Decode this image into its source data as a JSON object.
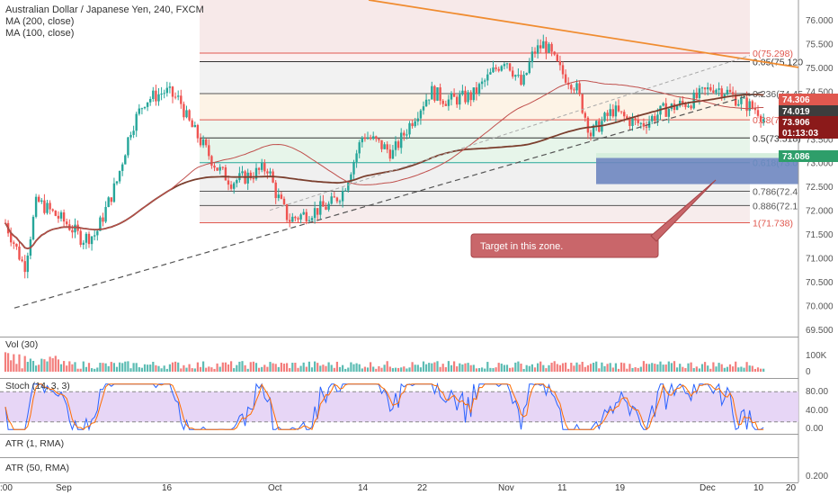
{
  "header": {
    "title": "Australian Dollar / Japanese Yen, 240, FXCM",
    "ma200": "MA (200, close)",
    "ma100": "MA (100, close)"
  },
  "price_axis": {
    "ticks": [
      "76.000",
      "75.500",
      "75.000",
      "74.500",
      "74.000",
      "73.500",
      "73.000",
      "72.500",
      "72.000",
      "71.500",
      "71.000",
      "70.500",
      "70.000",
      "69.500"
    ]
  },
  "badges": [
    {
      "text": "74.306",
      "color": "#e0584f"
    },
    {
      "text": "74.019",
      "color": "#3d3d3d"
    },
    {
      "text": "73.906",
      "color": "#8b1a1a"
    },
    {
      "text": "01:13:03",
      "color": "#8b1a1a"
    },
    {
      "text": "73.086",
      "color": "#2e9e6a"
    }
  ],
  "fib_labels": [
    {
      "text": "0(75.298)",
      "color": "#e0584f"
    },
    {
      "text": "0.05(75.120",
      "color": "#333333"
    },
    {
      "text": "0.236(74.45",
      "color": "#555555"
    },
    {
      "text": "0.38(73.9",
      "color": "#e0584f"
    },
    {
      "text": "0.5(73.518)",
      "color": "#333333"
    },
    {
      "text": "0.618(73.0",
      "color": "#26a69a"
    },
    {
      "text": "0.786(72.4",
      "color": "#555555"
    },
    {
      "text": "0.886(72.1",
      "color": "#555555"
    },
    {
      "text": "1(71.738)",
      "color": "#e0584f"
    }
  ],
  "annotation": {
    "text": "Target in this zone."
  },
  "panes": {
    "volume": {
      "title": "Vol (30)",
      "ticks": [
        "100K",
        "0"
      ]
    },
    "stoch": {
      "title": "Stoch (14, 3, 3)",
      "ticks": [
        "80.00",
        "40.00",
        "0.00"
      ]
    },
    "atr1": {
      "title": "ATR (1, RMA)"
    },
    "atr50": {
      "title": "ATR (50, RMA)",
      "ticks": [
        "0.200"
      ]
    }
  },
  "time_axis": {
    "labels": [
      ":00",
      "Sep",
      "16",
      "Oct",
      "14",
      "22",
      "Nov",
      "11",
      "19",
      "Dec",
      "10",
      "20"
    ]
  },
  "colors": {
    "up": "#26a69a",
    "down": "#ef5350",
    "ma200": "#7b3f2e",
    "ma100": "#c0504d",
    "trend_orange": "#f08c30",
    "target_box": "#6e86c0",
    "annotation_bg": "#c9666a"
  },
  "chart_data": {
    "type": "candlestick",
    "title": "Australian Dollar / Japanese Yen, 240, FXCM",
    "ylim": [
      69.35,
      76.3
    ],
    "series": [
      {
        "name": "MA (200, close)"
      },
      {
        "name": "MA (100, close)"
      }
    ],
    "close_path": [
      [
        "Aug 27",
        72.0
      ],
      [
        "Aug 29",
        70.8
      ],
      [
        "Aug 30",
        72.2
      ],
      [
        "Sep 2",
        71.7
      ],
      [
        "Sep 4",
        71.4
      ],
      [
        "Sep 6",
        71.5
      ],
      [
        "Sep 9",
        72.6
      ],
      [
        "Sep 11",
        73.7
      ],
      [
        "Sep 13",
        74.3
      ],
      [
        "Sep 16",
        74.5
      ],
      [
        "Sep 18",
        74.3
      ],
      [
        "Sep 19",
        73.9
      ],
      [
        "Sep 23",
        72.9
      ],
      [
        "Sep 25",
        72.6
      ],
      [
        "Sep 27",
        72.7
      ],
      [
        "Sep 30",
        72.9
      ],
      [
        "Oct 1",
        72.4
      ],
      [
        "Oct 3",
        71.8
      ],
      [
        "Oct 7",
        72.0
      ],
      [
        "Oct 9",
        72.1
      ],
      [
        "Oct 11",
        72.4
      ],
      [
        "Oct 14",
        73.6
      ],
      [
        "Oct 16",
        73.4
      ],
      [
        "Oct 18",
        73.2
      ],
      [
        "Oct 21",
        74.0
      ],
      [
        "Oct 23",
        74.5
      ],
      [
        "Oct 25",
        74.3
      ],
      [
        "Oct 28",
        74.4
      ],
      [
        "Oct 30",
        74.8
      ],
      [
        "Nov 1",
        75.2
      ],
      [
        "Nov 4",
        74.6
      ],
      [
        "Nov 6",
        75.3
      ],
      [
        "Nov 8",
        75.5
      ],
      [
        "Nov 11",
        74.9
      ],
      [
        "Nov 13",
        74.6
      ],
      [
        "Nov 15",
        73.6
      ],
      [
        "Nov 18",
        74.1
      ],
      [
        "Nov 20",
        73.9
      ],
      [
        "Nov 22",
        73.8
      ],
      [
        "Nov 25",
        74.1
      ],
      [
        "Nov 27",
        74.2
      ],
      [
        "Nov 29",
        74.3
      ],
      [
        "Dec 2",
        74.6
      ],
      [
        "Dec 4",
        74.5
      ],
      [
        "Dec 6",
        74.3
      ],
      [
        "Dec 9",
        74.1
      ],
      [
        "Dec 10",
        73.9
      ]
    ],
    "fibonacci": [
      {
        "level": "0",
        "price": 75.298
      },
      {
        "level": "0.05",
        "price": 75.12
      },
      {
        "level": "0.236",
        "price": 74.45
      },
      {
        "level": "0.382",
        "price": 73.9
      },
      {
        "level": "0.5",
        "price": 73.518
      },
      {
        "level": "0.618",
        "price": 73.0
      },
      {
        "level": "0.786",
        "price": 72.4
      },
      {
        "level": "0.886",
        "price": 72.1
      },
      {
        "level": "1",
        "price": 71.738
      }
    ],
    "target_zone": {
      "from": 72.55,
      "to": 73.1
    },
    "stoch_levels": [
      80,
      20
    ],
    "xlabel": "",
    "ylabel": ""
  }
}
